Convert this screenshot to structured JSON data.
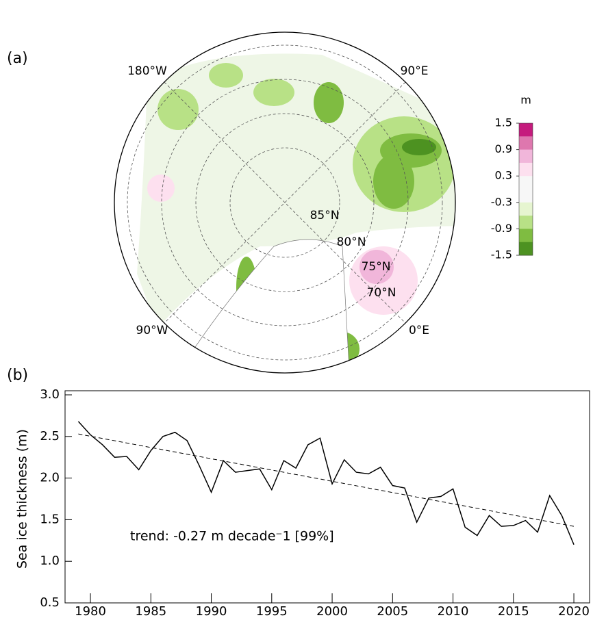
{
  "chart_data": [
    {
      "type": "map",
      "panel_label": "(a)",
      "lon_labels": [
        "180°W",
        "90°E",
        "90°W",
        "0°E"
      ],
      "lat_labels": [
        "85°N",
        "80°N",
        "75°N",
        "70°N"
      ],
      "colorbar": {
        "title": "m",
        "clim": [
          -1.5,
          1.5
        ],
        "ticks": [
          1.5,
          0.9,
          0.3,
          -0.3,
          -0.9,
          -1.5
        ],
        "colors": [
          "#c51b7d",
          "#de77ae",
          "#f1b6da",
          "#fde0ef",
          "#f7f7f7",
          "#f7f7f7",
          "#e6f5d0",
          "#b8e186",
          "#7fbc41",
          "#4d9221"
        ]
      }
    },
    {
      "type": "line",
      "panel_label": "(b)",
      "ylabel": "Sea ice thickness (m)",
      "annotation": "trend: -0.27 m decade⁻1 [99%]",
      "x": [
        1979,
        1980,
        1981,
        1982,
        1983,
        1984,
        1985,
        1986,
        1987,
        1988,
        1989,
        1990,
        1991,
        1992,
        1993,
        1994,
        1995,
        1996,
        1997,
        1998,
        1999,
        2000,
        2001,
        2002,
        2003,
        2004,
        2005,
        2006,
        2007,
        2008,
        2009,
        2010,
        2011,
        2012,
        2013,
        2014,
        2015,
        2016,
        2017,
        2018,
        2019,
        2020
      ],
      "values": [
        2.68,
        2.52,
        2.4,
        2.25,
        2.26,
        2.1,
        2.33,
        2.5,
        2.55,
        2.45,
        2.15,
        1.83,
        2.21,
        2.07,
        2.09,
        2.11,
        1.86,
        2.21,
        2.12,
        2.4,
        2.48,
        1.93,
        2.22,
        2.07,
        2.05,
        2.13,
        1.91,
        1.88,
        1.47,
        1.76,
        1.78,
        1.87,
        1.41,
        1.31,
        1.55,
        1.42,
        1.43,
        1.49,
        1.35,
        1.79,
        1.55,
        1.2
      ],
      "color": "#000000",
      "trend": {
        "x": [
          1979,
          2020
        ],
        "values": [
          2.53,
          1.42
        ]
      },
      "xlim": [
        1977.9,
        2021.3
      ],
      "ylim": [
        0.5,
        3.0
      ],
      "xticks": [
        1980,
        1985,
        1990,
        1995,
        2000,
        2005,
        2010,
        2015,
        2020
      ],
      "yticks": [
        0.5,
        {
          "value": 1,
          "label": "1.0"
        },
        1.5,
        {
          "value": 2,
          "label": "2.0"
        },
        2.5,
        {
          "value": 3,
          "label": "3.0"
        }
      ]
    }
  ]
}
